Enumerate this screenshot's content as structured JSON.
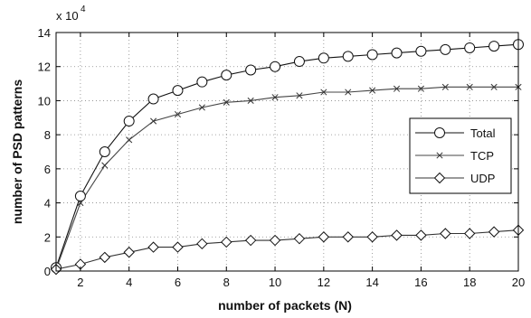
{
  "chart_data": {
    "type": "line",
    "xlabel": "number of packets (N)",
    "ylabel": "number of PSD patterns",
    "y_multiplier": {
      "base": "x 10",
      "exponent": "4"
    },
    "xlim": [
      1,
      20
    ],
    "ylim": [
      0,
      14
    ],
    "x_ticks": [
      "2",
      "4",
      "6",
      "8",
      "10",
      "12",
      "14",
      "16",
      "18",
      "20"
    ],
    "y_ticks": [
      "0",
      "2",
      "4",
      "6",
      "8",
      "10",
      "12",
      "14"
    ],
    "grid": "dotted",
    "legend_position": "right",
    "x": [
      1,
      2,
      3,
      4,
      5,
      6,
      7,
      8,
      9,
      10,
      11,
      12,
      13,
      14,
      15,
      16,
      17,
      18,
      19,
      20
    ],
    "series": [
      {
        "name": "Total",
        "marker": "circle",
        "values": [
          0.2,
          4.4,
          7.0,
          8.8,
          10.1,
          10.6,
          11.1,
          11.5,
          11.8,
          12.0,
          12.3,
          12.5,
          12.6,
          12.7,
          12.8,
          12.9,
          13.0,
          13.1,
          13.2,
          13.3
        ]
      },
      {
        "name": "TCP",
        "marker": "x",
        "values": [
          0.1,
          4.0,
          6.2,
          7.7,
          8.8,
          9.2,
          9.6,
          9.9,
          10.0,
          10.2,
          10.3,
          10.5,
          10.5,
          10.6,
          10.7,
          10.7,
          10.8,
          10.8,
          10.8,
          10.8
        ]
      },
      {
        "name": "UDP",
        "marker": "diamond",
        "values": [
          0.1,
          0.4,
          0.8,
          1.1,
          1.4,
          1.4,
          1.6,
          1.7,
          1.8,
          1.8,
          1.9,
          2.0,
          2.0,
          2.0,
          2.1,
          2.1,
          2.2,
          2.2,
          2.3,
          2.4
        ]
      }
    ]
  }
}
